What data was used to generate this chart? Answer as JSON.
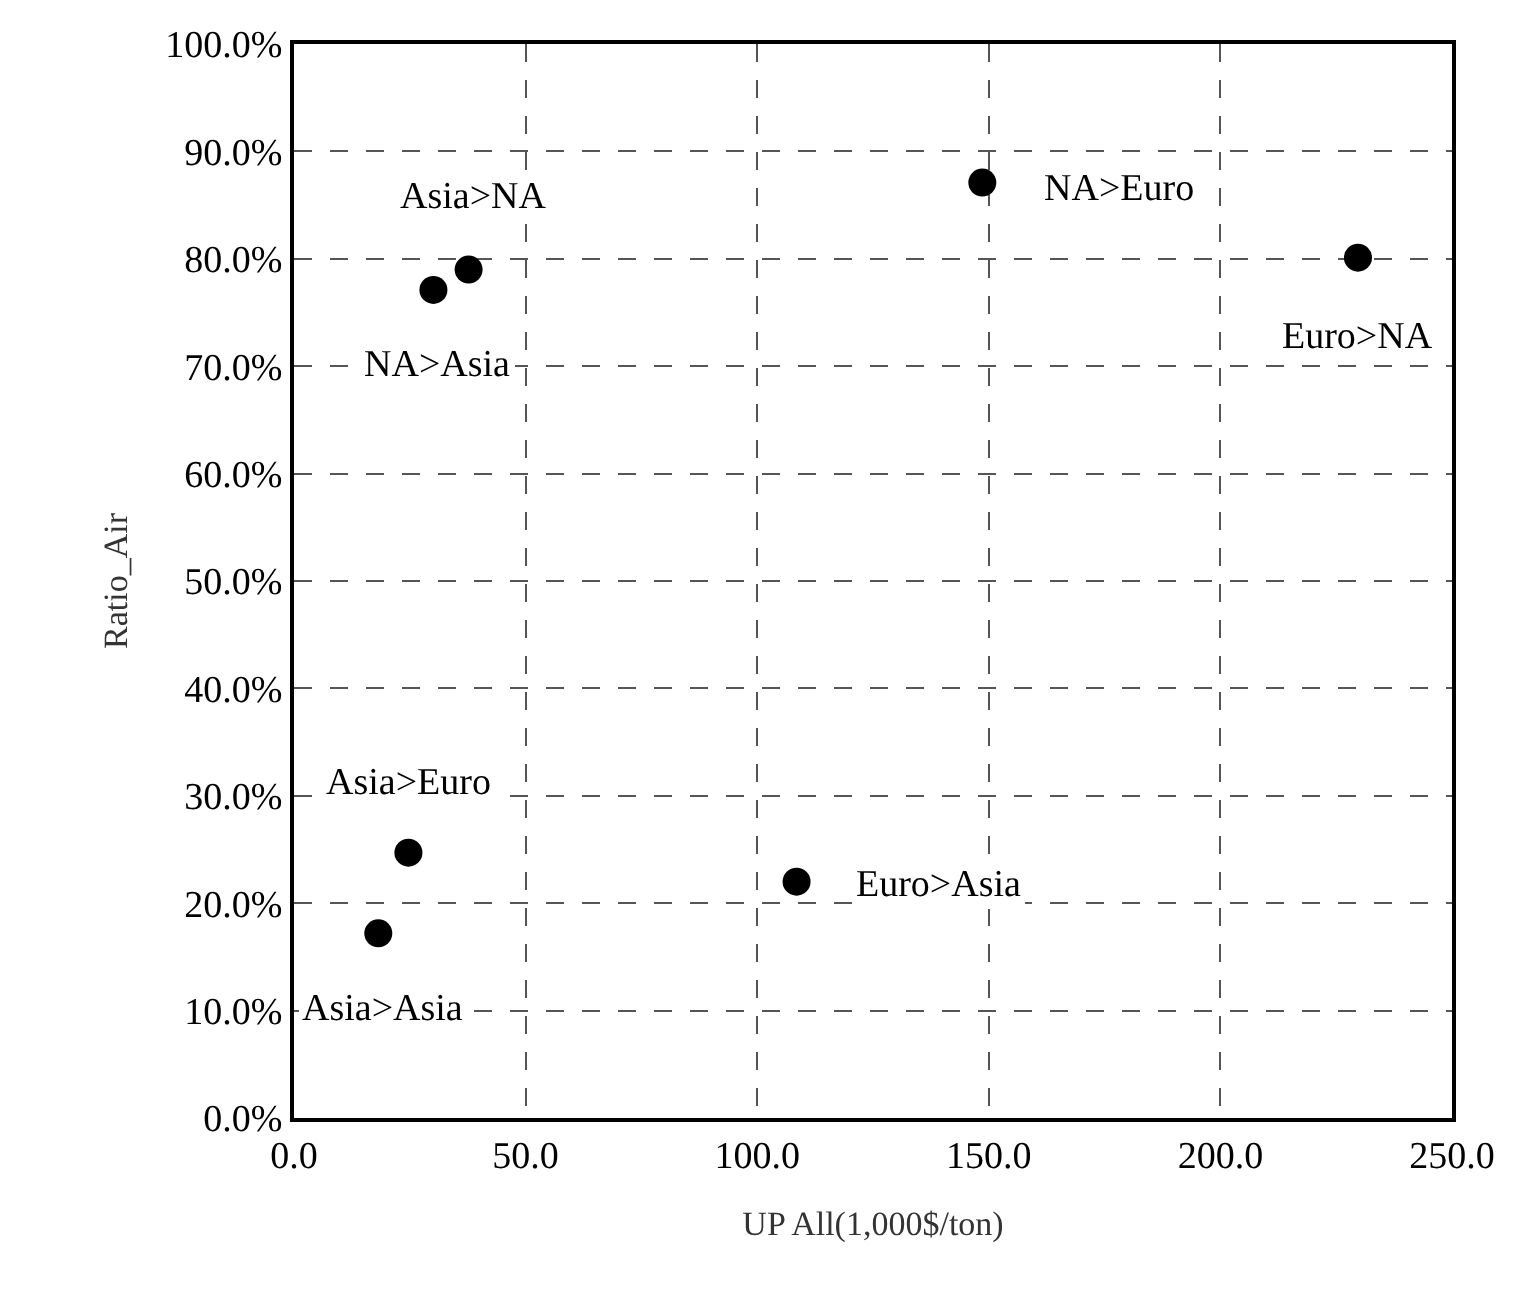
{
  "chart_data": {
    "type": "scatter",
    "xlabel": "UP All(1,000$/ton)",
    "ylabel": "Ratio_Air",
    "x": [
      37.7,
      30.1,
      148.6,
      229.7,
      24.7,
      18.2,
      108.5
    ],
    "series": [
      {
        "color": "#000000",
        "values": [
          79.0,
          77.1,
          87.1,
          80.1,
          24.7,
          17.2,
          22.0
        ]
      }
    ],
    "marker": "circle",
    "grid": true,
    "xlim": [
      0,
      250
    ],
    "xticks": [
      {
        "value": 0,
        "label": "0.0"
      },
      {
        "value": 50,
        "label": "50.0"
      },
      {
        "value": 100,
        "label": "100.0"
      },
      {
        "value": 150,
        "label": "150.0"
      },
      {
        "value": 200,
        "label": "200.0"
      },
      {
        "value": 250,
        "label": "250.0"
      }
    ],
    "ylim": [
      0,
      100
    ],
    "yticks": [
      {
        "value": 0,
        "label": "0.0%"
      },
      {
        "value": 10,
        "label": "10.0%"
      },
      {
        "value": 20,
        "label": "20.0%"
      },
      {
        "value": 30,
        "label": "30.0%"
      },
      {
        "value": 40,
        "label": "40.0%"
      },
      {
        "value": 50,
        "label": "50.0%"
      },
      {
        "value": 60,
        "label": "60.0%"
      },
      {
        "value": 70,
        "label": "70.0%"
      },
      {
        "value": 80,
        "label": "80.0%"
      },
      {
        "value": 90,
        "label": "90.0%"
      },
      {
        "value": 100,
        "label": "100.0%"
      }
    ],
    "annotations": [
      {
        "text": "Asia>NA",
        "x": 37.7,
        "y": 79.0
      },
      {
        "text": "NA>Asia",
        "x": 30.1,
        "y": 77.1
      },
      {
        "text": "NA>Euro",
        "x": 148.6,
        "y": 87.1
      },
      {
        "text": "Euro>NA",
        "x": 229.7,
        "y": 80.1
      },
      {
        "text": "Asia>Euro",
        "x": 24.7,
        "y": 24.7
      },
      {
        "text": "Asia>Asia",
        "x": 18.2,
        "y": 17.2
      },
      {
        "text": "Euro>Asia",
        "x": 108.5,
        "y": 22.0
      }
    ]
  }
}
